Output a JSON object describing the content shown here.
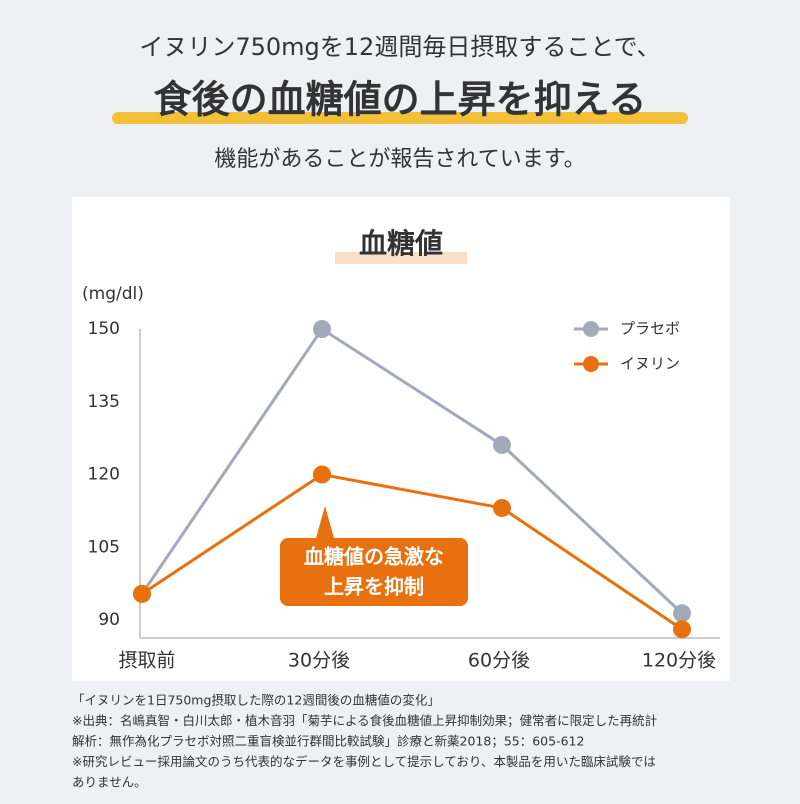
{
  "header": {
    "lead": "イヌリン750mgを12週間毎日摂取することで、",
    "headline": "食後の血糖値の上昇を抑える",
    "sub": "機能があることが報告されています。"
  },
  "chart_data": {
    "type": "line",
    "title": "血糖値",
    "y_label": "(mg/dl)",
    "categories": [
      "摂取前",
      "30分後",
      "60分後",
      "120分後"
    ],
    "series": [
      {
        "name": "プラセボ",
        "color": "#a3a9b8",
        "values": [
          95.4,
          150,
          126.1,
          91.4
        ]
      },
      {
        "name": "イヌリン",
        "color": "#e8700f",
        "values": [
          95.4,
          120,
          113.1,
          88.1
        ]
      }
    ],
    "ylim": [
      86.3,
      150
    ],
    "yticks": [
      90,
      105,
      120,
      135,
      150
    ],
    "legend": "upper-right",
    "annotation": [
      "血糖値の急激な",
      "上昇を抑制"
    ]
  },
  "notes": [
    "「イヌリンを1日750mg摂取した際の12週間後の血糖値の変化」",
    "※出典：名嶋真智・白川太郎・植木音羽「菊芋による食後血糖値上昇抑制効果；健常者に限定した再統計",
    "解析：無作為化プラセボ対照二重盲検並行群間比較試験」診療と新薬2018；55：605-612",
    "※研究レビュー採用論文のうち代表的なデータを事例として提示しており、本製品を用いた臨床試験では",
    "ありません。"
  ]
}
